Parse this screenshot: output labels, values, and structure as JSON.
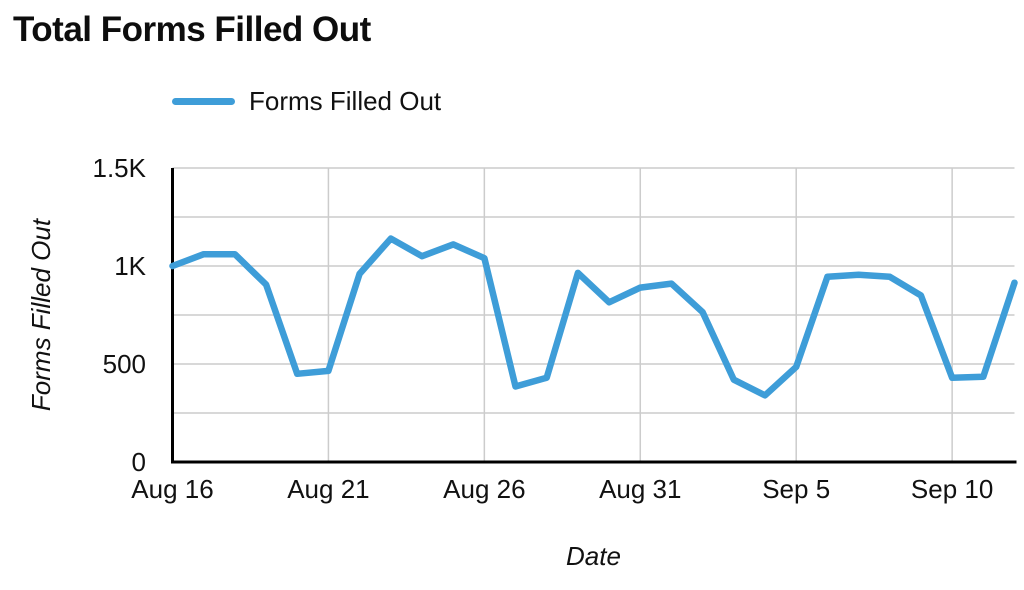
{
  "header": {
    "title": "Total Forms Filled Out"
  },
  "legend": {
    "label": "Forms Filled Out"
  },
  "chart_data": {
    "type": "line",
    "title": "Total Forms Filled Out",
    "xlabel": "Date",
    "ylabel": "Forms Filled Out",
    "ylim": [
      0,
      1500
    ],
    "grid": true,
    "legend_position": "top",
    "x": [
      "Aug 16",
      "Aug 17",
      "Aug 18",
      "Aug 19",
      "Aug 20",
      "Aug 21",
      "Aug 22",
      "Aug 23",
      "Aug 24",
      "Aug 25",
      "Aug 26",
      "Aug 27",
      "Aug 28",
      "Aug 29",
      "Aug 30",
      "Aug 31",
      "Sep 1",
      "Sep 2",
      "Sep 3",
      "Sep 4",
      "Sep 5",
      "Sep 6",
      "Sep 7",
      "Sep 8",
      "Sep 9",
      "Sep 10",
      "Sep 11",
      "Sep 12"
    ],
    "series": [
      {
        "name": "Forms Filled Out",
        "values": [
          1000,
          1060,
          1060,
          905,
          450,
          465,
          960,
          1140,
          1050,
          1110,
          1040,
          385,
          430,
          965,
          815,
          890,
          910,
          765,
          420,
          340,
          485,
          945,
          955,
          945,
          850,
          430,
          435,
          915
        ]
      }
    ],
    "y_ticks": [
      {
        "value": 0,
        "label": "0"
      },
      {
        "value": 500,
        "label": "500"
      },
      {
        "value": 1000,
        "label": "1K"
      },
      {
        "value": 1500,
        "label": "1.5K"
      }
    ],
    "y_gridline_values": [
      250,
      500,
      750,
      1000,
      1250,
      1500
    ],
    "x_tick_indices": [
      0,
      5,
      10,
      15,
      20,
      25
    ],
    "x_tick_labels": [
      "Aug 16",
      "Aug 21",
      "Aug 26",
      "Aug 31",
      "Sep 5",
      "Sep 10"
    ],
    "colors": {
      "line": "#3E9DD8",
      "grid": "#cccccc",
      "axis": "#000000",
      "text": "#111111"
    }
  }
}
